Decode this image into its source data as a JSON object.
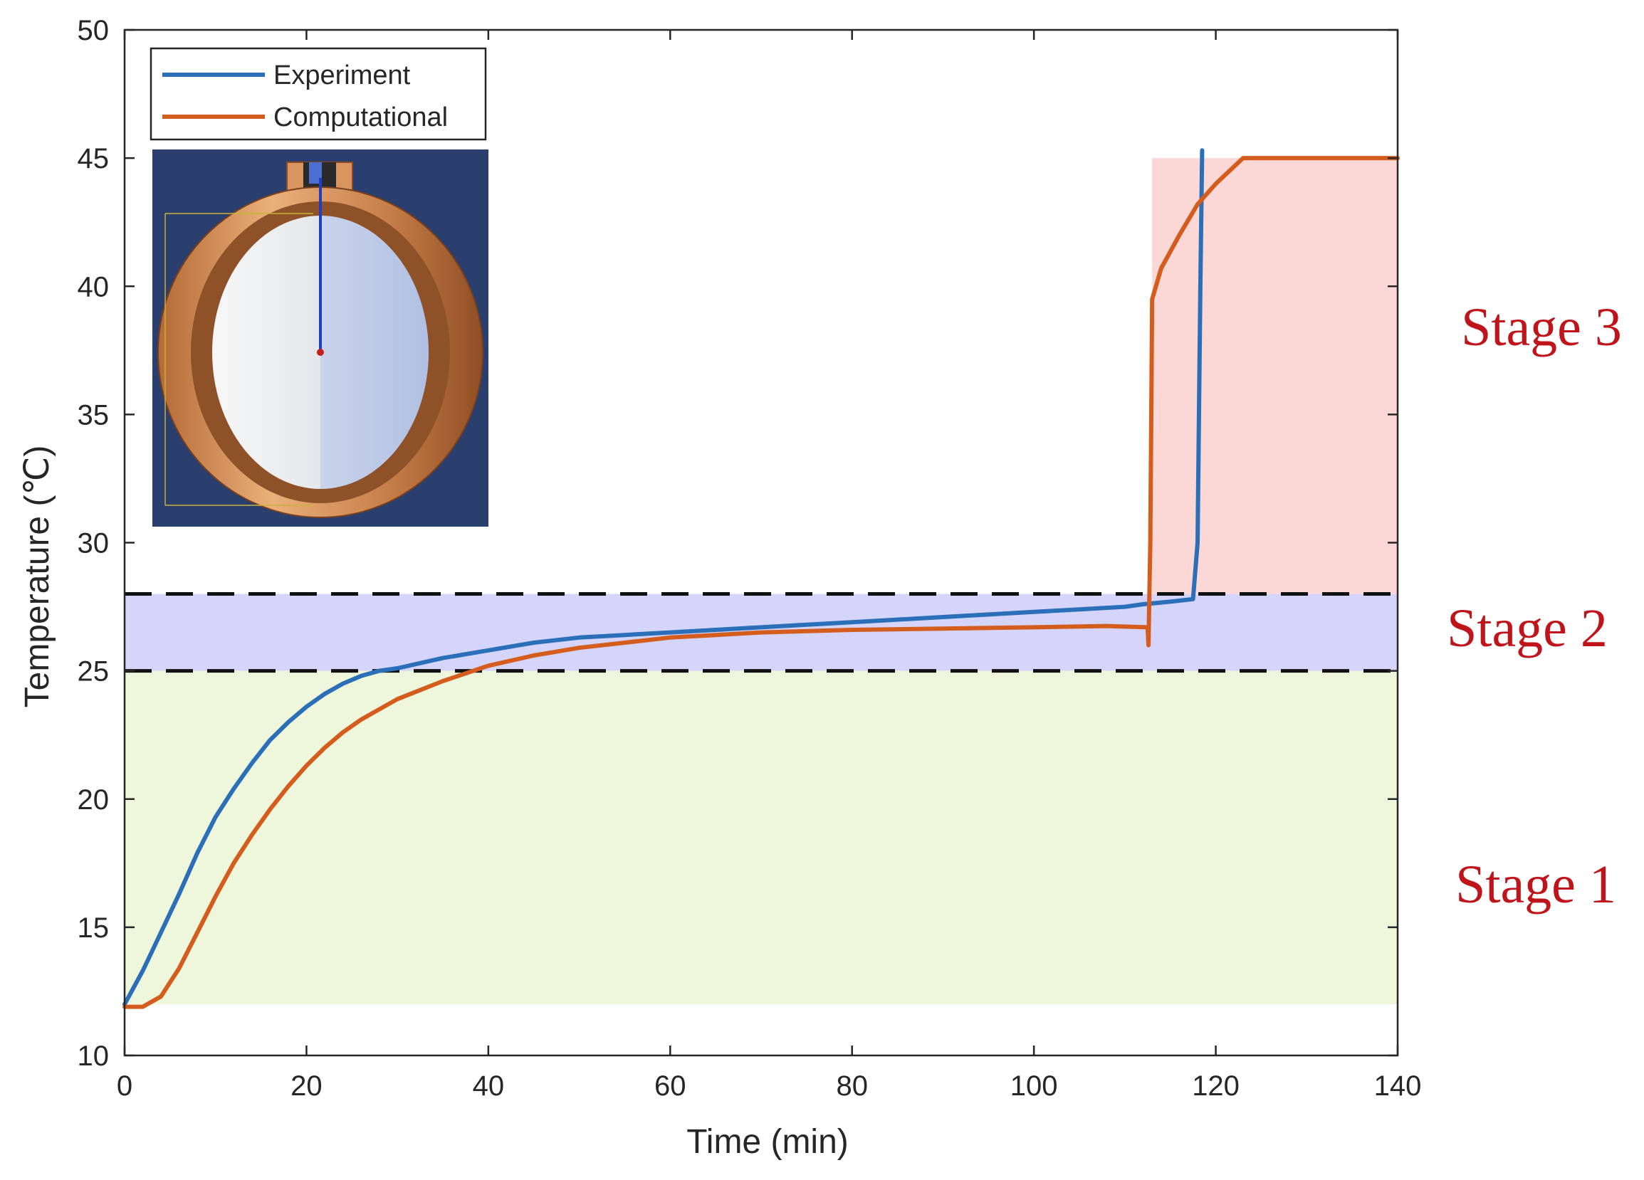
{
  "chart_data": {
    "type": "line",
    "title": "",
    "xlabel": "Time (min)",
    "ylabel": "Temperature (℃)",
    "xlim": [
      0,
      140
    ],
    "ylim": [
      10,
      50
    ],
    "xticks": [
      0,
      20,
      40,
      60,
      80,
      100,
      120,
      140
    ],
    "yticks": [
      10,
      15,
      20,
      25,
      30,
      35,
      40,
      45,
      50
    ],
    "grid": false,
    "legend": {
      "position": "top-left",
      "entries": [
        "Experiment",
        "Computational"
      ]
    },
    "series": [
      {
        "name": "Experiment",
        "color": "#2a6fb8",
        "x": [
          0,
          2,
          4,
          6,
          8,
          10,
          12,
          14,
          16,
          18,
          20,
          22,
          24,
          26,
          28,
          30,
          35,
          40,
          45,
          50,
          55,
          60,
          65,
          70,
          75,
          80,
          85,
          90,
          95,
          100,
          105,
          110,
          112,
          115,
          117.5,
          118,
          118.3,
          118.5
        ],
        "y": [
          12.0,
          13.3,
          14.8,
          16.3,
          17.9,
          19.3,
          20.4,
          21.4,
          22.3,
          23.0,
          23.6,
          24.1,
          24.5,
          24.8,
          25.0,
          25.1,
          25.5,
          25.8,
          26.1,
          26.3,
          26.4,
          26.5,
          26.6,
          26.7,
          26.8,
          26.9,
          27.0,
          27.1,
          27.2,
          27.3,
          27.4,
          27.5,
          27.6,
          27.7,
          27.8,
          30.0,
          40.0,
          45.3
        ]
      },
      {
        "name": "Computational",
        "color": "#d45c1c",
        "x": [
          0,
          2,
          4,
          6,
          8,
          10,
          12,
          14,
          16,
          18,
          20,
          22,
          24,
          26,
          28,
          30,
          35,
          40,
          45,
          50,
          55,
          60,
          65,
          70,
          80,
          90,
          100,
          108,
          112.5,
          112.6,
          112.8,
          113,
          114,
          116,
          118,
          120,
          123,
          130,
          140
        ],
        "y": [
          11.9,
          11.9,
          12.3,
          13.4,
          14.8,
          16.2,
          17.5,
          18.6,
          19.6,
          20.5,
          21.3,
          22.0,
          22.6,
          23.1,
          23.5,
          23.9,
          24.6,
          25.2,
          25.6,
          25.9,
          26.1,
          26.3,
          26.4,
          26.5,
          26.6,
          26.65,
          26.7,
          26.75,
          26.7,
          26.0,
          30.0,
          39.5,
          40.7,
          42.0,
          43.2,
          44.0,
          45.0,
          45.0,
          45.0
        ]
      }
    ],
    "regions": [
      {
        "label": "Stage 1",
        "x_range": [
          0,
          140
        ],
        "y_range": [
          12,
          25
        ],
        "color": "#eef6dc"
      },
      {
        "label": "Stage 2",
        "x_range": [
          0,
          140
        ],
        "y_range": [
          25,
          28
        ],
        "color": "#d5d5fb"
      },
      {
        "label": "Stage 3",
        "x_range": [
          113,
          140
        ],
        "y_range": [
          28,
          45
        ],
        "color": "#fbd7d5"
      }
    ],
    "threshold_lines": [
      {
        "y": 25,
        "style": "dashed",
        "color": "#111111"
      },
      {
        "y": 28,
        "style": "dashed",
        "color": "#111111"
      }
    ]
  },
  "inset": {
    "description_icon": "copper-sphere-cross-section-icon"
  }
}
